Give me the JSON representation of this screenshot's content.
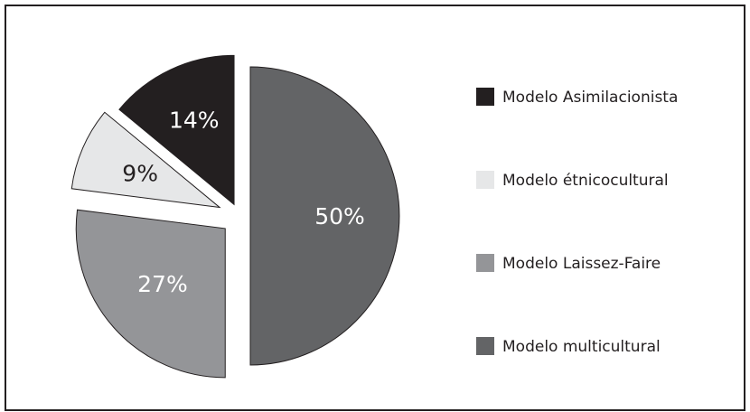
{
  "chart_data": {
    "type": "pie",
    "slices": [
      {
        "name": "Modelo multicultural",
        "value": 50,
        "label": "50%",
        "color": "#636466",
        "label_color": "#ffffff"
      },
      {
        "name": "Modelo Laissez-Faire",
        "value": 27,
        "label": "27%",
        "color": "#949598",
        "label_color": "#ffffff"
      },
      {
        "name": "Modelo étnicocultural",
        "value": 9,
        "label": "9%",
        "color": "#e6e7e8",
        "label_color": "#231f20"
      },
      {
        "name": "Modelo Asimilacionista",
        "value": 14,
        "label": "14%",
        "color": "#231f20",
        "label_color": "#ffffff"
      }
    ],
    "legend": {
      "position": "right",
      "entries": [
        "Modelo Asimilacionista",
        "Modelo étnicocultural",
        "Modelo Laissez-Faire",
        "Modelo multicultural"
      ]
    }
  }
}
